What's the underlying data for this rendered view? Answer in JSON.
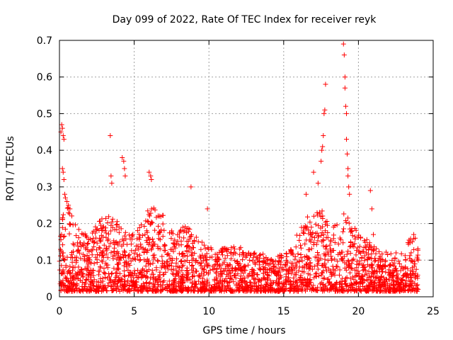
{
  "chart_data": {
    "type": "scatter",
    "title": "Day 099 of 2022, Rate Of TEC Index for receiver reyk",
    "xlabel": "GPS time / hours",
    "ylabel": "ROTI / TECUs",
    "xlim": [
      0,
      25
    ],
    "ylim": [
      0,
      0.7
    ],
    "x_ticks": [
      0,
      5,
      10,
      15,
      20,
      25
    ],
    "x_tick_labels": [
      "0",
      "5",
      "10",
      "15",
      "20",
      "25"
    ],
    "y_ticks": [
      0,
      0.1,
      0.2,
      0.3,
      0.4,
      0.5,
      0.6,
      0.7
    ],
    "y_tick_labels": [
      "0",
      "0.1",
      "0.2",
      "0.3",
      "0.4",
      "0.5",
      "0.6",
      "0.7"
    ],
    "grid": true,
    "marker": "plus",
    "color": "#ff0000",
    "series": [
      {
        "name": "ROTI",
        "x": [
          0.1,
          0.15,
          0.2,
          0.25,
          0.3,
          0.2,
          0.25,
          0.3,
          0.35,
          0.4,
          0.5,
          0.6,
          0.7,
          3.4,
          3.45,
          3.5,
          4.2,
          4.3,
          4.35,
          4.4,
          6.0,
          6.1,
          6.15,
          8.8,
          9.9,
          16.5,
          17.0,
          17.3,
          17.5,
          17.55,
          17.6,
          17.65,
          17.7,
          17.75,
          17.8,
          19.0,
          19.05,
          19.1,
          19.1,
          19.15,
          19.2,
          19.2,
          19.25,
          19.3,
          19.3,
          19.35,
          19.4,
          20.8,
          20.9,
          21.0,
          23.6,
          23.7,
          23.8
        ],
        "y": [
          0.45,
          0.47,
          0.46,
          0.44,
          0.43,
          0.35,
          0.34,
          0.32,
          0.28,
          0.27,
          0.26,
          0.25,
          0.24,
          0.44,
          0.33,
          0.31,
          0.38,
          0.37,
          0.35,
          0.33,
          0.34,
          0.33,
          0.32,
          0.3,
          0.24,
          0.28,
          0.34,
          0.31,
          0.37,
          0.4,
          0.41,
          0.44,
          0.5,
          0.51,
          0.58,
          0.69,
          0.66,
          0.6,
          0.57,
          0.52,
          0.5,
          0.43,
          0.39,
          0.35,
          0.33,
          0.3,
          0.28,
          0.29,
          0.24,
          0.17,
          0.15,
          0.17,
          0.16
        ]
      }
    ],
    "dense_envelope": {
      "hours": [
        0,
        0.5,
        1,
        1.5,
        2,
        2.5,
        3,
        3.5,
        4,
        4.5,
        5,
        5.5,
        6,
        6.5,
        7,
        7.5,
        8,
        8.5,
        9,
        9.5,
        10,
        10.5,
        11,
        11.5,
        12,
        12.5,
        13,
        13.5,
        14,
        14.5,
        15,
        15.5,
        16,
        16.5,
        17,
        17.5,
        18,
        18.5,
        19,
        19.5,
        20,
        20.5,
        21,
        21.5,
        22,
        22.5,
        23,
        23.5,
        24
      ],
      "roti_max": [
        0.22,
        0.26,
        0.2,
        0.18,
        0.17,
        0.2,
        0.22,
        0.22,
        0.2,
        0.18,
        0.17,
        0.2,
        0.25,
        0.24,
        0.22,
        0.2,
        0.18,
        0.2,
        0.17,
        0.15,
        0.14,
        0.13,
        0.14,
        0.14,
        0.14,
        0.12,
        0.12,
        0.12,
        0.11,
        0.11,
        0.12,
        0.14,
        0.18,
        0.22,
        0.24,
        0.24,
        0.2,
        0.2,
        0.24,
        0.2,
        0.18,
        0.16,
        0.14,
        0.13,
        0.12,
        0.12,
        0.12,
        0.17,
        0.14
      ],
      "roti_min": 0.015
    }
  }
}
